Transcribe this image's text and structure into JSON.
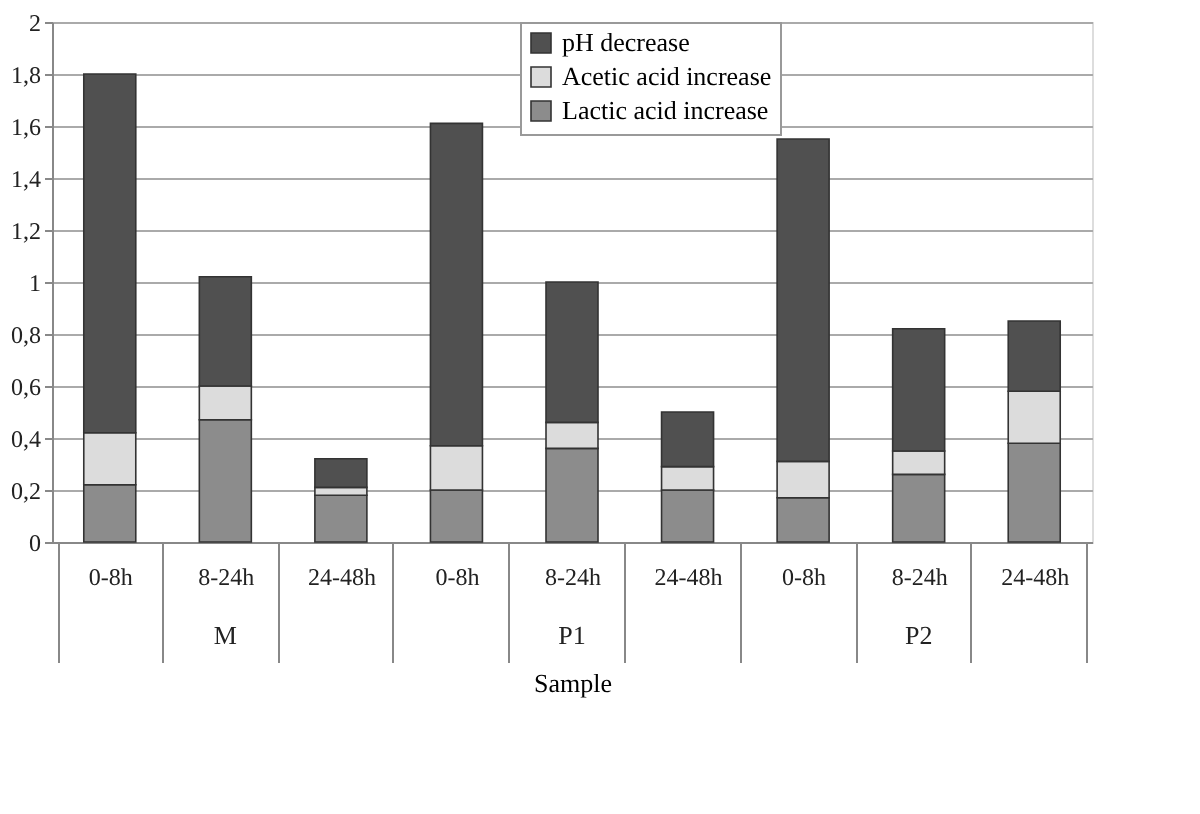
{
  "chart_data": {
    "type": "bar",
    "stacked": true,
    "xlabel": "Sample",
    "categories": [
      "0-8h",
      "8-24h",
      "24-48h",
      "0-8h",
      "8-24h",
      "24-48h",
      "0-8h",
      "8-24h",
      "24-48h"
    ],
    "annotations": [
      "M",
      "P1",
      "P2"
    ],
    "series": [
      {
        "name": "Lactic acid increase",
        "color": "#8c8c8c",
        "values": [
          0.22,
          0.47,
          0.18,
          0.2,
          0.36,
          0.2,
          0.17,
          0.26,
          0.38
        ]
      },
      {
        "name": "Acetic acid increase",
        "color": "#dcdcdc",
        "values": [
          0.2,
          0.13,
          0.03,
          0.17,
          0.1,
          0.09,
          0.14,
          0.09,
          0.2
        ]
      },
      {
        "name": "pH decrease",
        "color": "#505050",
        "values": [
          1.38,
          0.42,
          0.11,
          1.24,
          0.54,
          0.21,
          1.24,
          0.47,
          0.27
        ]
      }
    ],
    "ylim": [
      0,
      2
    ],
    "yticks": [
      0,
      {
        "value": 0.2,
        "label": "0,2"
      },
      {
        "value": 0.4,
        "label": "0,4"
      },
      {
        "value": 0.6,
        "label": "0,6"
      },
      {
        "value": 0.8,
        "label": "0,8"
      },
      1,
      {
        "value": 1.2,
        "label": "1,2"
      },
      {
        "value": 1.4,
        "label": "1,4"
      },
      {
        "value": 1.6,
        "label": "1,6"
      },
      {
        "value": 1.8,
        "label": "1,8"
      },
      2
    ],
    "grid": "y",
    "legend": "top"
  }
}
